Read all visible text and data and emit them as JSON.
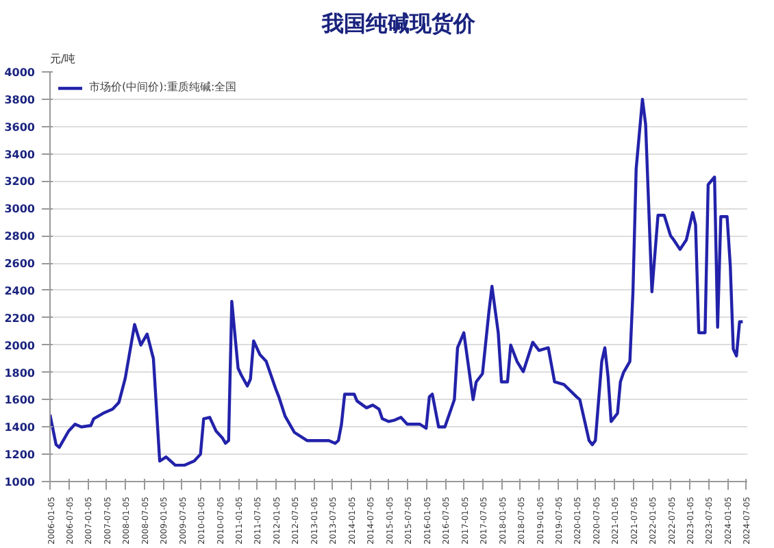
{
  "chart_data": {
    "type": "line",
    "title": "我国纯碱现货价",
    "ylabel": "元/吨",
    "x": [
      "2006-01",
      "2006-03",
      "2006-04",
      "2006-07",
      "2006-09",
      "2006-11",
      "2007-02",
      "2007-03",
      "2007-06",
      "2007-09",
      "2007-11",
      "2008-01",
      "2008-04",
      "2008-06",
      "2008-08",
      "2008-10",
      "2008-12",
      "2009-02",
      "2009-05",
      "2009-08",
      "2009-11",
      "2010-01",
      "2010-02",
      "2010-04",
      "2010-06",
      "2010-08",
      "2010-09",
      "2010-10",
      "2010-11",
      "2011-01",
      "2011-02",
      "2011-04",
      "2011-05",
      "2011-06",
      "2011-08",
      "2011-10",
      "2012-01",
      "2012-02",
      "2012-04",
      "2012-07",
      "2012-11",
      "2013-06",
      "2013-08",
      "2013-09",
      "2013-10",
      "2013-11",
      "2014-02",
      "2014-03",
      "2014-06",
      "2014-08",
      "2014-10",
      "2014-11",
      "2015-01",
      "2015-03",
      "2015-05",
      "2015-07",
      "2015-11",
      "2016-01",
      "2016-02",
      "2016-03",
      "2016-05",
      "2016-07",
      "2016-10",
      "2016-11",
      "2017-01",
      "2017-04",
      "2017-05",
      "2017-07",
      "2017-09",
      "2017-10",
      "2017-12",
      "2018-01",
      "2018-03",
      "2018-04",
      "2018-06",
      "2018-08",
      "2018-11",
      "2019-01",
      "2019-04",
      "2019-06",
      "2019-09",
      "2020-01",
      "2020-02",
      "2020-05",
      "2020-06",
      "2020-07",
      "2020-09",
      "2020-10",
      "2020-11",
      "2020-12",
      "2021-02",
      "2021-03",
      "2021-04",
      "2021-06",
      "2021-07",
      "2021-08",
      "2021-10",
      "2021-11",
      "2022-01",
      "2022-03",
      "2022-05",
      "2022-07",
      "2022-08",
      "2022-10",
      "2022-12",
      "2023-02",
      "2023-03",
      "2023-04",
      "2023-06",
      "2023-07",
      "2023-09",
      "2023-10",
      "2023-11",
      "2024-01",
      "2024-02",
      "2024-03",
      "2024-04",
      "2024-05",
      "2024-06"
    ],
    "series": [
      {
        "name": "市场价(中间价):重质纯碱:全国",
        "color": "#2222aa",
        "values": [
          1490,
          1270,
          1250,
          1370,
          1420,
          1400,
          1410,
          1460,
          1500,
          1530,
          1580,
          1755,
          2150,
          2000,
          2080,
          1900,
          1150,
          1180,
          1120,
          1120,
          1150,
          1200,
          1460,
          1470,
          1370,
          1320,
          1280,
          1300,
          2320,
          1830,
          1780,
          1700,
          1750,
          2030,
          1930,
          1880,
          1680,
          1620,
          1480,
          1360,
          1300,
          1300,
          1280,
          1300,
          1420,
          1640,
          1640,
          1590,
          1540,
          1560,
          1530,
          1460,
          1440,
          1450,
          1470,
          1420,
          1420,
          1390,
          1620,
          1640,
          1400,
          1400,
          1600,
          1980,
          2090,
          1600,
          1730,
          1790,
          2240,
          2430,
          2090,
          1730,
          1730,
          2000,
          1880,
          1805,
          2020,
          1960,
          1980,
          1730,
          1710,
          1620,
          1600,
          1300,
          1270,
          1300,
          1880,
          1980,
          1770,
          1440,
          1500,
          1730,
          1800,
          1880,
          2390,
          3290,
          3800,
          3615,
          2390,
          2950,
          2950,
          2800,
          2770,
          2700,
          2770,
          2970,
          2880,
          2090,
          2090,
          3175,
          3230,
          2130,
          2940,
          2940,
          2580,
          1970,
          1920,
          2170,
          2170
        ]
      }
    ],
    "xlim": [
      "2006-01-01",
      "2024-07-15"
    ],
    "xticks": [
      "2006-01-05",
      "2006-07-05",
      "2007-01-05",
      "2007-07-05",
      "2008-01-05",
      "2008-07-05",
      "2009-01-05",
      "2009-07-05",
      "2010-01-05",
      "2010-07-05",
      "2011-01-05",
      "2011-07-05",
      "2012-01-05",
      "2012-07-05",
      "2013-01-05",
      "2013-07-05",
      "2014-01-05",
      "2014-07-05",
      "2015-01-05",
      "2015-07-05",
      "2016-01-05",
      "2016-07-05",
      "2017-01-05",
      "2017-07-05",
      "2018-01-05",
      "2018-07-05",
      "2019-01-05",
      "2019-07-05",
      "2020-01-05",
      "2020-07-05",
      "2021-01-05",
      "2021-07-05",
      "2022-01-05",
      "2022-07-05",
      "2023-01-05",
      "2023-07-05",
      "2024-01-05",
      "2024-07-05"
    ],
    "ylim": [
      1000,
      4000
    ],
    "yticks": [
      1000,
      1200,
      1400,
      1600,
      1800,
      2000,
      2200,
      2400,
      2600,
      2800,
      3000,
      3200,
      3400,
      3600,
      3800,
      4000
    ],
    "grid": "y",
    "legend": "top left",
    "marker": "none",
    "line_style": "solid"
  }
}
